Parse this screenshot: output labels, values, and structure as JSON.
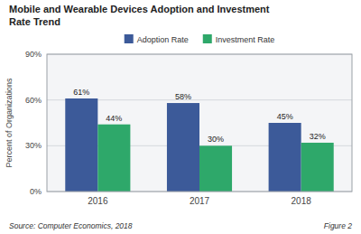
{
  "chart_data": {
    "type": "bar",
    "title": "Mobile and Wearable Devices Adoption and Investment\nRate Trend",
    "y_label": "Percent of Organizations",
    "categories": [
      "2016",
      "2017",
      "2018"
    ],
    "series": [
      {
        "name": "Adoption Rate",
        "color": "#3C5A99",
        "values": [
          61,
          58,
          45
        ],
        "value_labels": [
          "61%",
          "58%",
          "45%"
        ]
      },
      {
        "name": "Investment Rate",
        "color": "#2EA86A",
        "values": [
          44,
          30,
          32
        ],
        "value_labels": [
          "44%",
          "30%",
          "32%"
        ]
      }
    ],
    "ylim": [
      0,
      90
    ],
    "yticks": [
      {
        "value": 0,
        "label": "0%"
      },
      {
        "value": 30,
        "label": "30%"
      },
      {
        "value": 60,
        "label": "60%"
      },
      {
        "value": 90,
        "label": "90%"
      }
    ],
    "grid": true,
    "legend": "top",
    "data_labels": true,
    "annotations": [
      "Source: Computer Economics, 2018",
      "Figure 2"
    ]
  }
}
